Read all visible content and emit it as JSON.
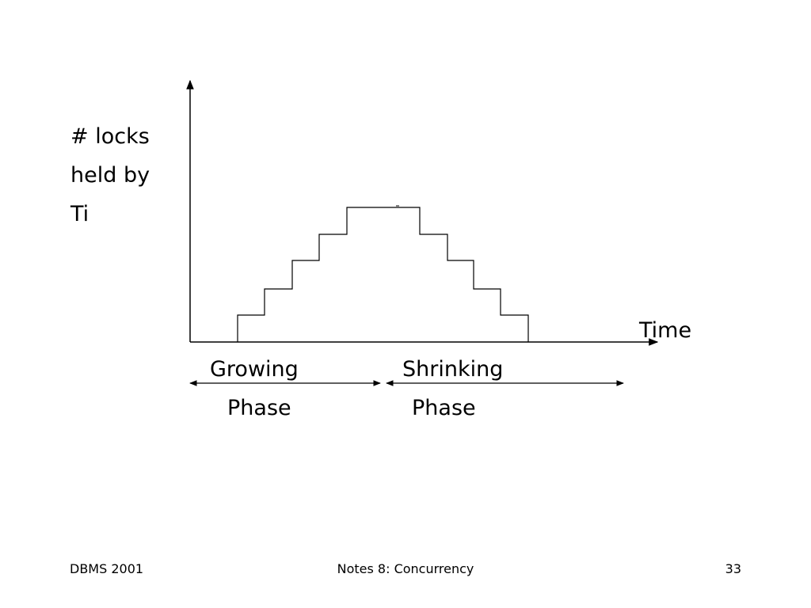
{
  "y_label": [
    "# locks",
    "held by",
    "Ti"
  ],
  "x_label": "Time",
  "phases": [
    {
      "line1": "Growing",
      "line2": "Phase"
    },
    {
      "line1": "Shrinking",
      "line2": "Phase"
    }
  ],
  "footer": {
    "left": "DBMS 2001",
    "center": "Notes 8: Concurrency",
    "page": 33
  }
}
